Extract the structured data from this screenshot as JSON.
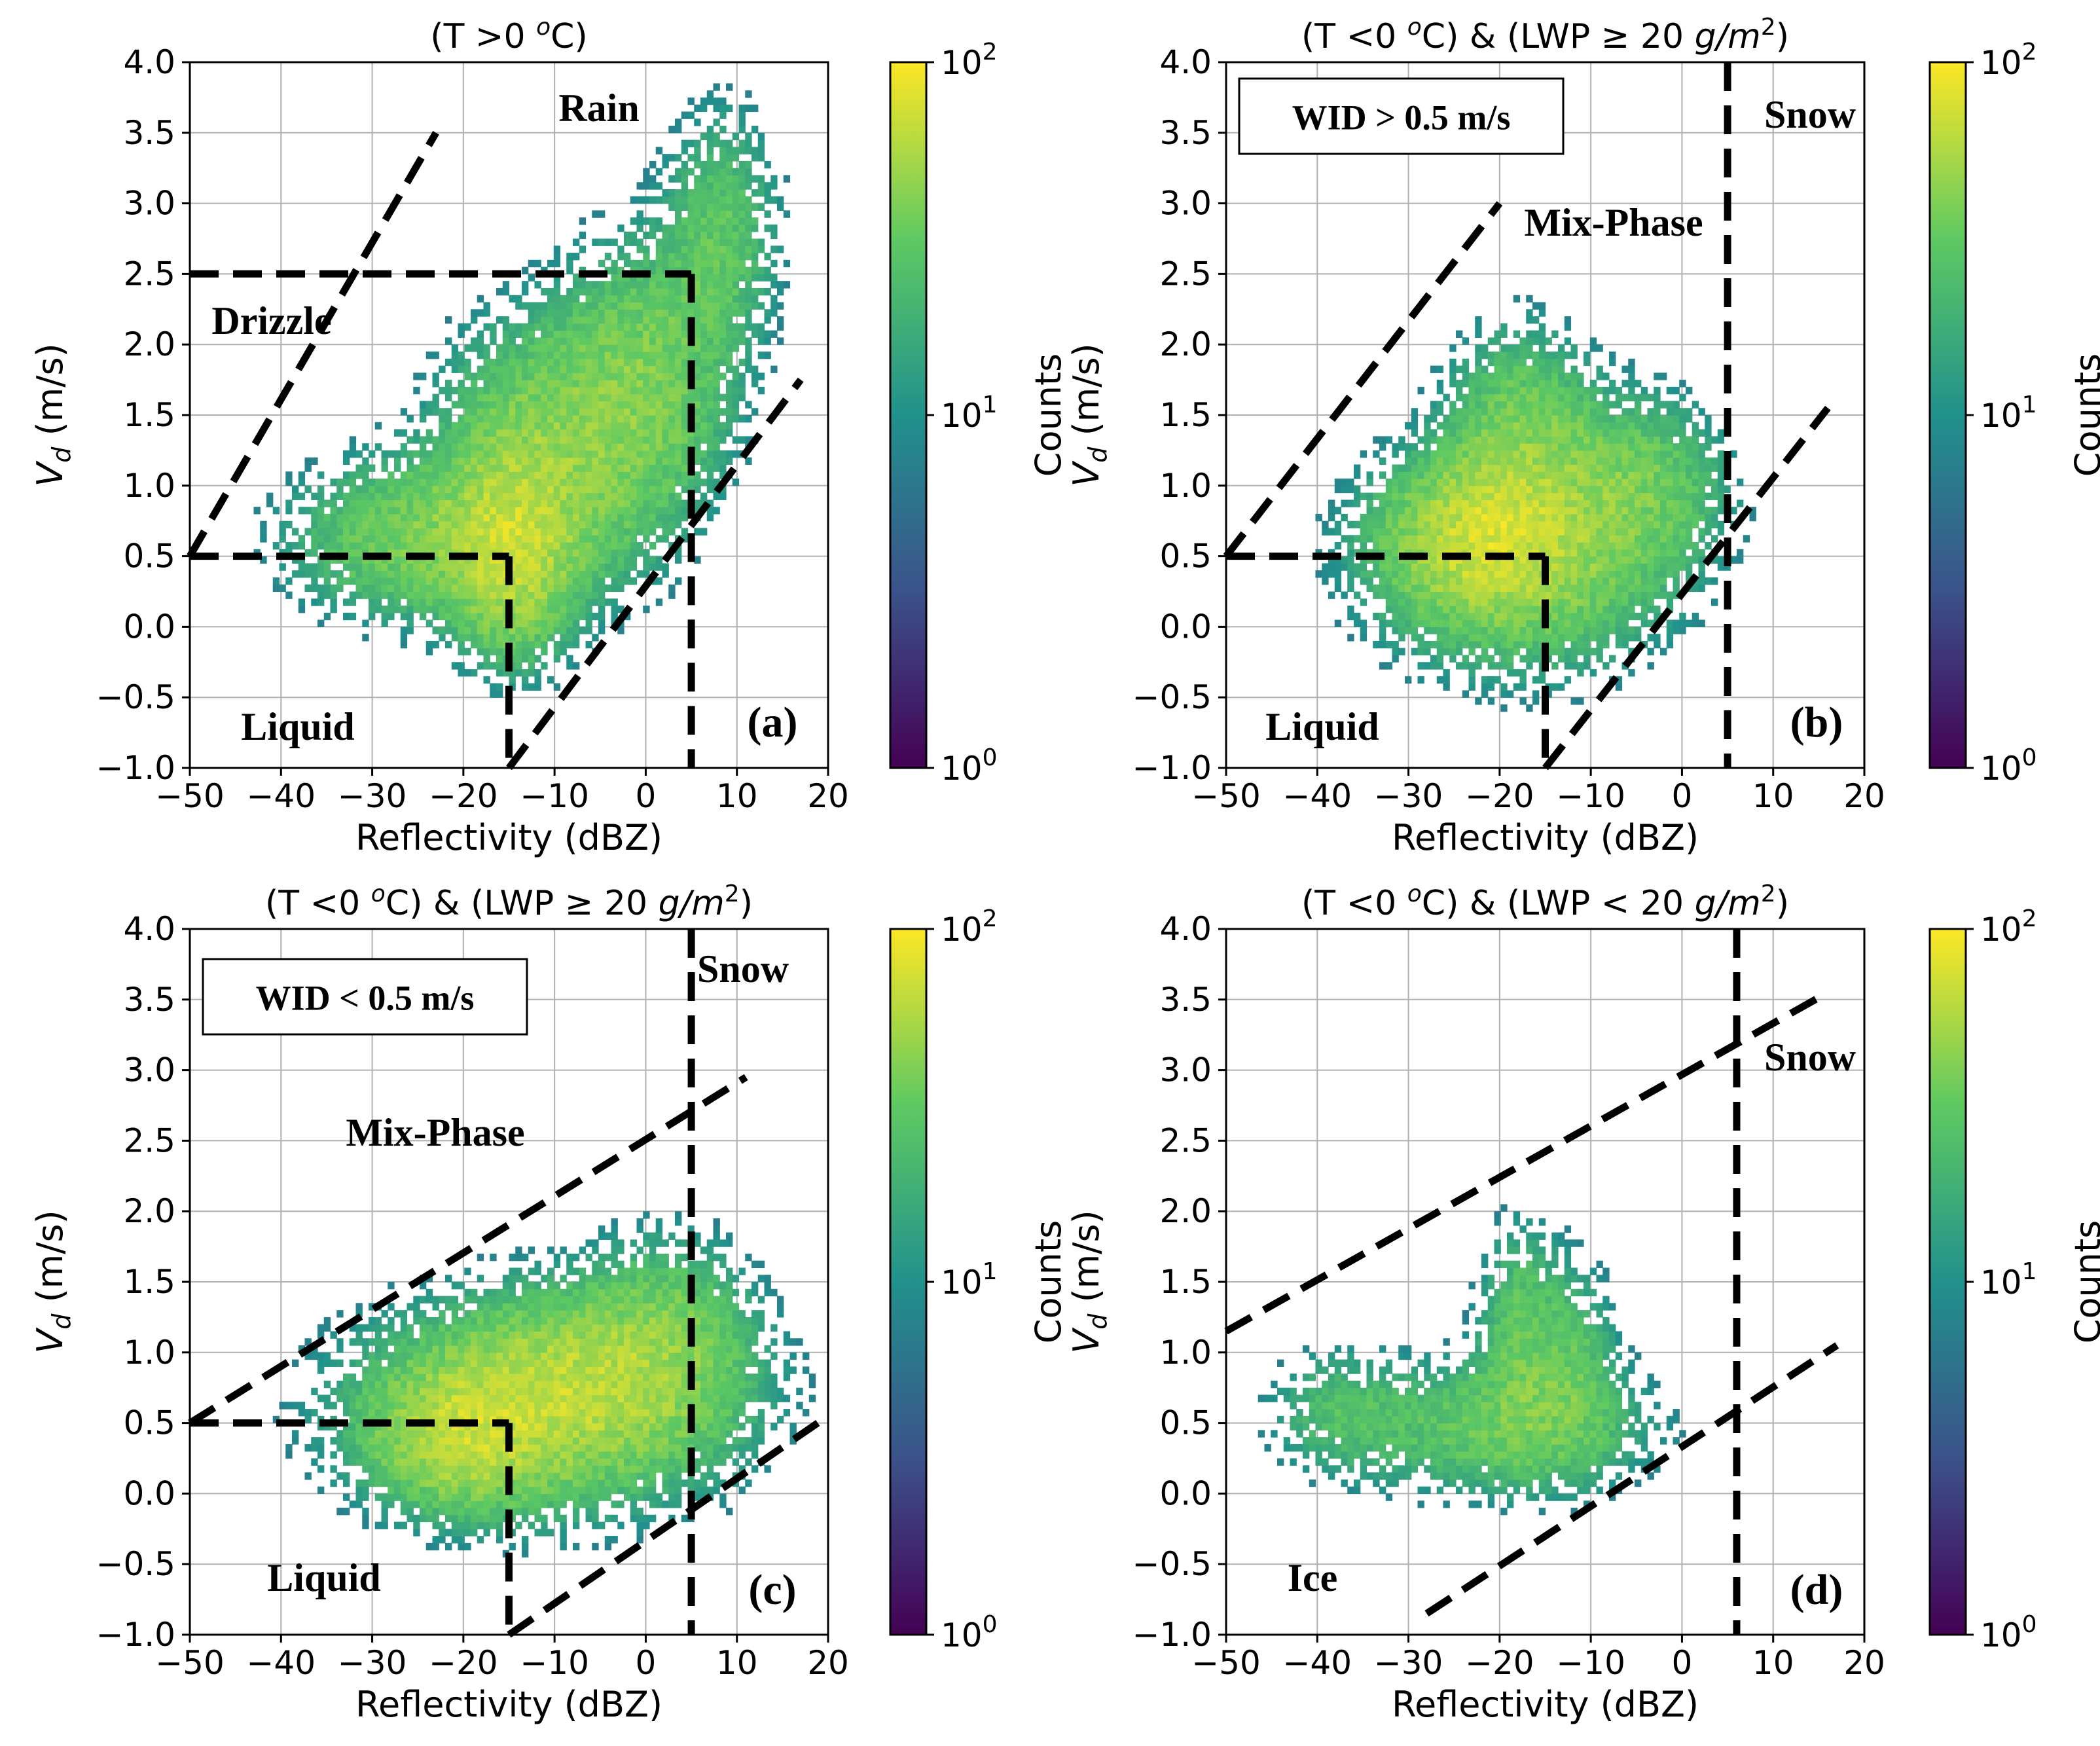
{
  "colormap": [
    "#440154",
    "#3b528b",
    "#21918c",
    "#5ec962",
    "#fde725"
  ],
  "colorbar": {
    "label": "Counts",
    "ticks": [
      "10",
      "10",
      "10"
    ],
    "exponents": [
      "0",
      "1",
      "2"
    ]
  },
  "chart_data": [
    {
      "type": "heatmap",
      "title": "(T >0 ",
      "title_sup": "o",
      "title_end": "C)",
      "xlabel": "Reflectivity (dBZ)",
      "ylabel_main": "V",
      "ylabel_sub": "d",
      "ylabel_end": " (m/s)",
      "xlim": [
        -50,
        20
      ],
      "ylim": [
        -1.0,
        4.0
      ],
      "xticks": [
        "−50",
        "−40",
        "−30",
        "−20",
        "−10",
        "0",
        "10",
        "20"
      ],
      "yticks": [
        "−1.0",
        "−0.5",
        "0.0",
        "0.5",
        "1.0",
        "1.5",
        "2.0",
        "2.5",
        "3.0",
        "3.5",
        "4.0"
      ],
      "grid": true,
      "panel_label": "(a)",
      "box_label": "",
      "annotations": [
        "Rain",
        "Drizzle",
        "Liquid"
      ],
      "boundaries": [
        {
          "kind": "line",
          "from": [
            -50,
            0.5
          ],
          "to": [
            -15,
            0.5
          ]
        },
        {
          "kind": "line",
          "from": [
            -15,
            0.5
          ],
          "to": [
            -15,
            -1.0
          ]
        },
        {
          "kind": "line",
          "from": [
            -50,
            0.5
          ],
          "to": [
            -23,
            3.5
          ]
        },
        {
          "kind": "line",
          "from": [
            -50,
            2.5
          ],
          "to": [
            5,
            2.5
          ]
        },
        {
          "kind": "line",
          "from": [
            5,
            2.5
          ],
          "to": [
            5,
            -1.0
          ]
        },
        {
          "kind": "line",
          "from": [
            -15,
            -1.0
          ],
          "to": [
            17,
            1.75
          ]
        }
      ],
      "density_clusters": [
        {
          "x": -15,
          "y": 0.5,
          "sx": 4,
          "sy": 0.45,
          "peak": 2.0
        },
        {
          "x": -10,
          "y": 1.2,
          "sx": 8,
          "sy": 0.6,
          "peak": 1.3
        },
        {
          "x": -25,
          "y": 0.6,
          "sx": 9,
          "sy": 0.35,
          "peak": 1.1
        },
        {
          "x": 0,
          "y": 1.8,
          "sx": 6,
          "sy": 0.6,
          "peak": 0.9
        },
        {
          "x": 8,
          "y": 2.8,
          "sx": 4,
          "sy": 0.55,
          "peak": 0.7
        }
      ]
    },
    {
      "type": "heatmap",
      "title": "(T <0 ",
      "title_sup": "o",
      "title_end": "C) & (LWP ≥ 20 ",
      "title_unit": "g/m",
      "title_unit_sup": "2",
      "title_close": ")",
      "xlabel": "Reflectivity (dBZ)",
      "ylabel_main": "V",
      "ylabel_sub": "d",
      "ylabel_end": " (m/s)",
      "xlim": [
        -50,
        20
      ],
      "ylim": [
        -1.0,
        4.0
      ],
      "xticks": [
        "−50",
        "−40",
        "−30",
        "−20",
        "−10",
        "0",
        "10",
        "20"
      ],
      "yticks": [
        "−1.0",
        "−0.5",
        "0.0",
        "0.5",
        "1.0",
        "1.5",
        "2.0",
        "2.5",
        "3.0",
        "3.5",
        "4.0"
      ],
      "grid": true,
      "panel_label": "(b)",
      "box_label": "WID > 0.5 m/s",
      "annotations": [
        "Snow",
        "Mix-Phase",
        "Liquid"
      ],
      "boundaries": [
        {
          "kind": "line",
          "from": [
            -50,
            0.5
          ],
          "to": [
            -15,
            0.5
          ]
        },
        {
          "kind": "line",
          "from": [
            -15,
            0.5
          ],
          "to": [
            -15,
            -1.0
          ]
        },
        {
          "kind": "line",
          "from": [
            -50,
            0.5
          ],
          "to": [
            -20,
            3.0
          ]
        },
        {
          "kind": "line",
          "from": [
            5,
            4.0
          ],
          "to": [
            5,
            -1.0
          ]
        },
        {
          "kind": "line",
          "from": [
            -15,
            -1.0
          ],
          "to": [
            16,
            1.55
          ]
        }
      ],
      "density_clusters": [
        {
          "x": -22,
          "y": 0.6,
          "sx": 6,
          "sy": 0.3,
          "peak": 2.0
        },
        {
          "x": -18,
          "y": 0.5,
          "sx": 10,
          "sy": 0.5,
          "peak": 1.4
        },
        {
          "x": -18,
          "y": 1.3,
          "sx": 5,
          "sy": 0.5,
          "peak": 1.0
        },
        {
          "x": -5,
          "y": 1.0,
          "sx": 6,
          "sy": 0.4,
          "peak": 0.8
        }
      ]
    },
    {
      "type": "heatmap",
      "title": "(T <0 ",
      "title_sup": "o",
      "title_end": "C) & (LWP ≥ 20 ",
      "title_unit": "g/m",
      "title_unit_sup": "2",
      "title_close": ")",
      "xlabel": "Reflectivity (dBZ)",
      "ylabel_main": "V",
      "ylabel_sub": "d",
      "ylabel_end": " (m/s)",
      "xlim": [
        -50,
        20
      ],
      "ylim": [
        -1.0,
        4.0
      ],
      "xticks": [
        "−50",
        "−40",
        "−30",
        "−20",
        "−10",
        "0",
        "10",
        "20"
      ],
      "yticks": [
        "−1.0",
        "−0.5",
        "0.0",
        "0.5",
        "1.0",
        "1.5",
        "2.0",
        "2.5",
        "3.0",
        "3.5",
        "4.0"
      ],
      "grid": true,
      "panel_label": "(c)",
      "box_label": "WID < 0.5 m/s",
      "annotations": [
        "Snow",
        "Mix-Phase",
        "Liquid"
      ],
      "boundaries": [
        {
          "kind": "line",
          "from": [
            -50,
            0.5
          ],
          "to": [
            -15,
            0.5
          ]
        },
        {
          "kind": "line",
          "from": [
            -15,
            0.5
          ],
          "to": [
            -15,
            -1.0
          ]
        },
        {
          "kind": "line",
          "from": [
            -50,
            0.5
          ],
          "to": [
            11,
            2.95
          ]
        },
        {
          "kind": "line",
          "from": [
            5,
            4.0
          ],
          "to": [
            5,
            -1.0
          ]
        },
        {
          "kind": "line",
          "from": [
            -15,
            -1.0
          ],
          "to": [
            20,
            0.55
          ]
        }
      ],
      "density_clusters": [
        {
          "x": -20,
          "y": 0.4,
          "sx": 6,
          "sy": 0.3,
          "peak": 2.0
        },
        {
          "x": -8,
          "y": 0.75,
          "sx": 8,
          "sy": 0.35,
          "peak": 1.5
        },
        {
          "x": -12,
          "y": 0.6,
          "sx": 14,
          "sy": 0.5,
          "peak": 1.0
        },
        {
          "x": 2,
          "y": 1.1,
          "sx": 6,
          "sy": 0.45,
          "peak": 0.8
        }
      ]
    },
    {
      "type": "heatmap",
      "title": "(T <0 ",
      "title_sup": "o",
      "title_end": "C) & (LWP < 20 ",
      "title_unit": "g/m",
      "title_unit_sup": "2",
      "title_close": ")",
      "xlabel": "Reflectivity (dBZ)",
      "ylabel_main": "V",
      "ylabel_sub": "d",
      "ylabel_end": " (m/s)",
      "xlim": [
        -50,
        20
      ],
      "ylim": [
        -1.0,
        4.0
      ],
      "xticks": [
        "−50",
        "−40",
        "−30",
        "−20",
        "−10",
        "0",
        "10",
        "20"
      ],
      "yticks": [
        "−1.0",
        "−0.5",
        "0.0",
        "0.5",
        "1.0",
        "1.5",
        "2.0",
        "2.5",
        "3.0",
        "3.5",
        "4.0"
      ],
      "grid": true,
      "panel_label": "(d)",
      "box_label": "",
      "annotations": [
        "Snow",
        "Ice"
      ],
      "boundaries": [
        {
          "kind": "line",
          "from": [
            -50,
            1.15
          ],
          "to": [
            16,
            3.55
          ]
        },
        {
          "kind": "line",
          "from": [
            6,
            4.0
          ],
          "to": [
            6,
            -1.0
          ]
        },
        {
          "kind": "line",
          "from": [
            -28,
            -0.85
          ],
          "to": [
            17,
            1.05
          ]
        }
      ],
      "density_clusters": [
        {
          "x": -20,
          "y": 0.45,
          "sx": 10,
          "sy": 0.3,
          "peak": 0.9
        },
        {
          "x": -18,
          "y": 1.1,
          "sx": 3,
          "sy": 0.5,
          "peak": 0.8
        },
        {
          "x": -12,
          "y": 0.9,
          "sx": 3,
          "sy": 0.45,
          "peak": 0.6
        },
        {
          "x": -38,
          "y": 0.55,
          "sx": 5,
          "sy": 0.3,
          "peak": 0.5
        }
      ]
    }
  ]
}
